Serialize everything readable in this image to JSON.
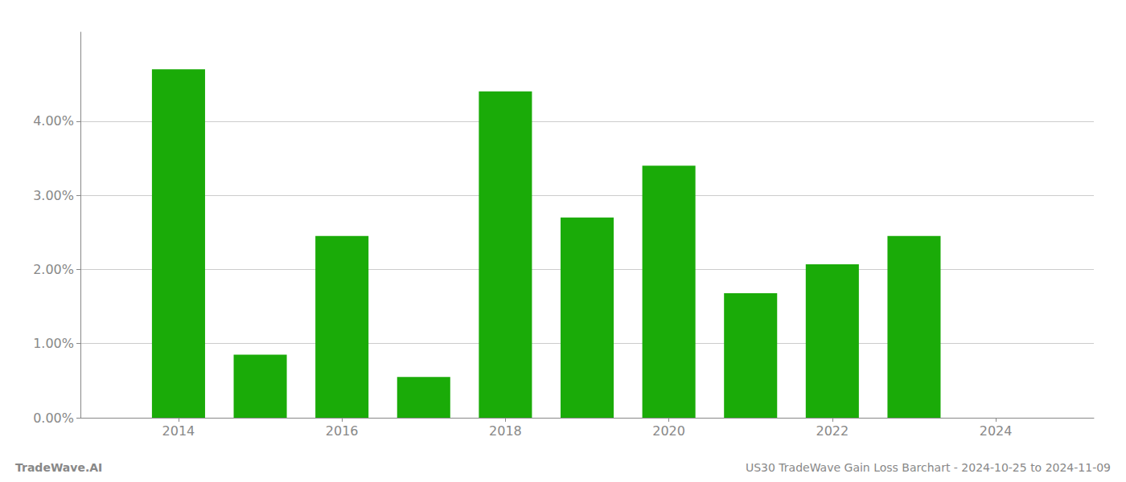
{
  "chart_data": {
    "type": "bar",
    "title": "US30 TradeWave Gain Loss Barchart - 2024-10-25 to 2024-11-09",
    "annotations": [
      "TradeWave.AI"
    ],
    "x": [
      2014,
      2015,
      2016,
      2017,
      2018,
      2019,
      2020,
      2021,
      2022,
      2023
    ],
    "values": [
      4.7,
      0.85,
      2.45,
      0.55,
      4.4,
      2.7,
      3.4,
      1.68,
      2.07,
      2.45
    ],
    "color": "#1aab08",
    "xlim": [
      2012.8,
      2025.2
    ],
    "xticks": [
      2014,
      2016,
      2018,
      2020,
      2022,
      2024
    ],
    "ylim": [
      0,
      5.2
    ],
    "yticks": [
      {
        "value": 0.0,
        "label": "0.00%"
      },
      {
        "value": 1.0,
        "label": "1.00%"
      },
      {
        "value": 2.0,
        "label": "2.00%"
      },
      {
        "value": 3.0,
        "label": "3.00%"
      },
      {
        "value": 4.0,
        "label": "4.00%"
      }
    ],
    "grid": true
  }
}
